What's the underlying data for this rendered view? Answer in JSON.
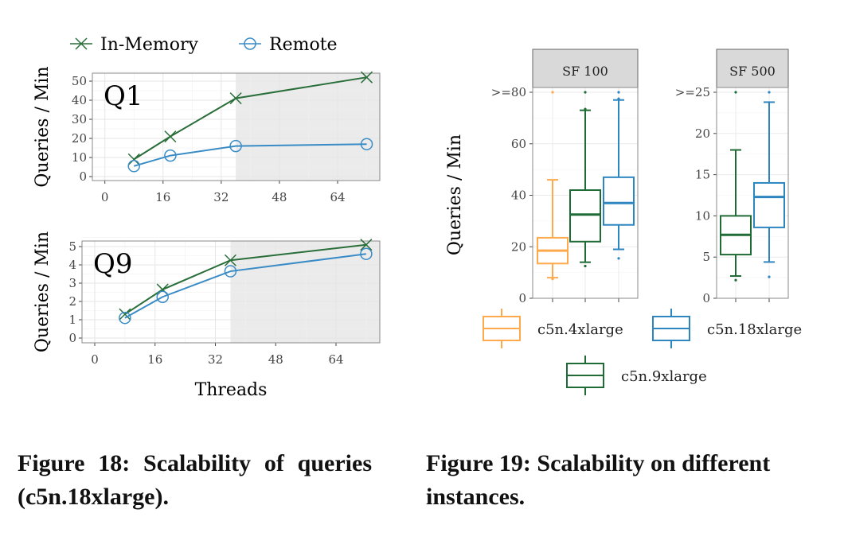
{
  "chart_data": [
    {
      "type": "line",
      "panel_label": "Q1",
      "ylabel": "Queries / Min",
      "xlabel": "",
      "xlim": [
        -4,
        75
      ],
      "ylim": [
        -1.5,
        54
      ],
      "xticks": [
        0,
        16,
        32,
        48,
        64
      ],
      "yticks": [
        0,
        10,
        20,
        30,
        40,
        50
      ],
      "shaded_from_x": 36,
      "grid": true,
      "x": [
        8,
        18,
        36,
        72
      ],
      "series": [
        {
          "name": "In-Memory",
          "values": [
            9,
            21,
            41,
            52
          ],
          "color": "#2a6e3a",
          "marker": "x"
        },
        {
          "name": "Remote",
          "values": [
            5.5,
            11,
            16,
            17
          ],
          "color": "#3a8cc6",
          "marker": "circle"
        }
      ]
    },
    {
      "type": "line",
      "panel_label": "Q9",
      "ylabel": "Queries / Min",
      "xlabel": "Threads",
      "xlim": [
        -4,
        75
      ],
      "ylim": [
        -0.15,
        5.35
      ],
      "xticks": [
        0,
        16,
        32,
        48,
        64
      ],
      "yticks": [
        0,
        1,
        2,
        3,
        4,
        5
      ],
      "shaded_from_x": 36,
      "grid": true,
      "x": [
        8,
        18,
        36,
        72
      ],
      "series": [
        {
          "name": "In-Memory",
          "values": [
            1.3,
            2.65,
            4.25,
            5.1
          ],
          "color": "#2a6e3a",
          "marker": "x"
        },
        {
          "name": "Remote",
          "values": [
            1.1,
            2.25,
            3.65,
            4.6
          ],
          "color": "#3a8cc6",
          "marker": "circle"
        }
      ]
    },
    {
      "type": "box",
      "facet": "SF 100",
      "ylabel": "Queries / Min",
      "ylim": [
        0,
        80
      ],
      "yticks": [
        "0",
        "20",
        "40",
        "60",
        ">=80"
      ],
      "grid": true,
      "boxes": [
        {
          "name": "c5n.4xlarge",
          "color": "#ffa94d",
          "whisker_low": 8,
          "q1": 13.5,
          "median": 18.5,
          "q3": 23.5,
          "whisker_high": 46,
          "outliers": [
            7.5,
            80
          ]
        },
        {
          "name": "c5n.9xlarge",
          "color": "#1f6b35",
          "whisker_low": 14,
          "q1": 22,
          "median": 32.5,
          "q3": 42,
          "whisker_high": 73,
          "outliers": [
            12.5,
            73.5,
            80
          ]
        },
        {
          "name": "c5n.18xlarge",
          "color": "#2e86c1",
          "whisker_low": 19,
          "q1": 28.5,
          "median": 37,
          "q3": 47,
          "whisker_high": 77,
          "outliers": [
            15.5,
            77.5,
            80
          ]
        }
      ]
    },
    {
      "type": "box",
      "facet": "SF 500",
      "ylim": [
        0,
        25
      ],
      "yticks": [
        "0",
        "5",
        "10",
        "15",
        "20",
        ">=25"
      ],
      "grid": true,
      "boxes": [
        {
          "name": "c5n.9xlarge",
          "color": "#1f6b35",
          "whisker_low": 2.7,
          "q1": 5.3,
          "median": 7.7,
          "q3": 10,
          "whisker_high": 18,
          "outliers": [
            2.2,
            25
          ]
        },
        {
          "name": "c5n.18xlarge",
          "color": "#2e86c1",
          "whisker_low": 4.4,
          "q1": 8.6,
          "median": 12.3,
          "q3": 14,
          "whisker_high": 23.8,
          "outliers": [
            2.6,
            25
          ]
        }
      ]
    }
  ],
  "legend_left": [
    "In-Memory",
    "Remote"
  ],
  "legend_right": [
    {
      "name": "c5n.4xlarge",
      "color": "#ffa94d"
    },
    {
      "name": "c5n.18xlarge",
      "color": "#2e86c1"
    },
    {
      "name": "c5n.9xlarge",
      "color": "#1f6b35"
    }
  ],
  "captions": {
    "fig18": "Figure 18: Scalability of queries (c5n.18xlarge).",
    "fig19": "Figure 19: Scalability on different instances."
  }
}
